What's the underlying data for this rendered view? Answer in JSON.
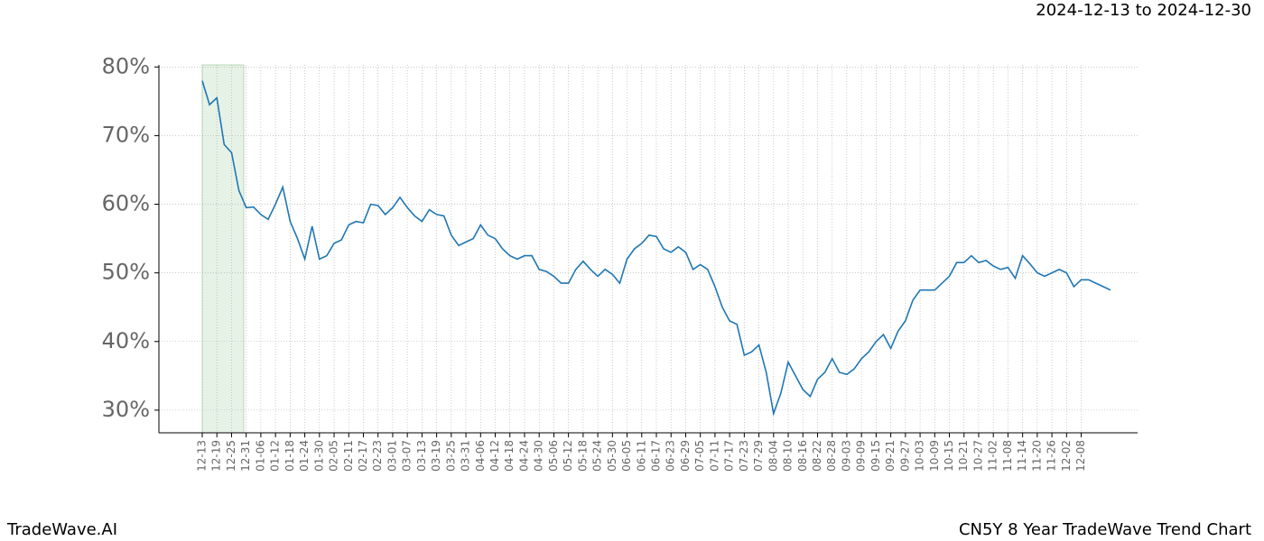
{
  "chart_data": {
    "type": "line",
    "title": "CN5Y 8 Year TradeWave Trend Chart",
    "subtitle": "2024-12-13 to 2024-12-30",
    "brand": "TradeWave.AI",
    "highlight": [
      "2024-12-13",
      "2024-12-30"
    ],
    "highlight_color": "#e6f2e6",
    "grid": true,
    "x": [
      "12-13",
      "12-16",
      "12-19",
      "12-22",
      "12-25",
      "12-28",
      "12-31",
      "01-03",
      "01-06",
      "01-09",
      "01-12",
      "01-15",
      "01-18",
      "01-21",
      "01-24",
      "01-27",
      "01-30",
      "02-02",
      "02-05",
      "02-08",
      "02-11",
      "02-14",
      "02-17",
      "02-20",
      "02-23",
      "02-26",
      "03-01",
      "03-04",
      "03-07",
      "03-10",
      "03-13",
      "03-16",
      "03-19",
      "03-22",
      "03-25",
      "03-28",
      "03-31",
      "04-03",
      "04-06",
      "04-09",
      "04-12",
      "04-15",
      "04-18",
      "04-21",
      "04-24",
      "04-27",
      "04-30",
      "05-03",
      "05-06",
      "05-09",
      "05-12",
      "05-15",
      "05-18",
      "05-21",
      "05-24",
      "05-27",
      "05-30",
      "06-02",
      "06-05",
      "06-08",
      "06-11",
      "06-14",
      "06-17",
      "06-20",
      "06-23",
      "06-26",
      "06-29",
      "07-02",
      "07-05",
      "07-08",
      "07-11",
      "07-14",
      "07-17",
      "07-20",
      "07-23",
      "07-26",
      "07-29",
      "08-01",
      "08-04",
      "08-07",
      "08-10",
      "08-13",
      "08-16",
      "08-19",
      "08-22",
      "08-25",
      "08-28",
      "08-31",
      "09-03",
      "09-06",
      "09-09",
      "09-12",
      "09-15",
      "09-18",
      "09-21",
      "09-24",
      "09-27",
      "09-30",
      "10-03",
      "10-06",
      "10-09",
      "10-12",
      "10-15",
      "10-18",
      "10-21",
      "10-24",
      "10-27",
      "10-30",
      "11-02",
      "11-05",
      "11-08",
      "11-11",
      "11-14",
      "11-17",
      "11-20",
      "11-23",
      "11-26",
      "11-29",
      "12-02",
      "12-05",
      "12-08",
      "12-11",
      "12-14",
      "12-17",
      "12-20"
    ],
    "series": [
      {
        "name": "CN5Y",
        "color": "#1f77b4",
        "values": [
          78,
          74.5,
          75.5,
          68.7,
          67.5,
          62,
          59.5,
          59.6,
          58.5,
          57.8,
          60,
          62.5,
          57.5,
          55,
          52,
          56.8,
          52,
          52.5,
          54.3,
          54.8,
          57,
          57.5,
          57.3,
          60,
          59.8,
          58.5,
          59.5,
          61,
          59.5,
          58.3,
          57.5,
          59.2,
          58.5,
          58.3,
          55.5,
          54,
          54.5,
          55,
          57,
          55.5,
          55,
          53.5,
          52.5,
          52,
          52.5,
          52.5,
          50.5,
          50.2,
          49.5,
          48.5,
          48.5,
          50.5,
          51.7,
          50.5,
          49.5,
          50.5,
          49.8,
          48.5,
          52,
          53.5,
          54.3,
          55.5,
          55.3,
          53.5,
          53,
          53.8,
          53,
          50.5,
          51.2,
          50.5,
          48,
          45,
          43,
          42.5,
          38,
          38.5,
          39.5,
          35.5,
          29.5,
          32.5,
          37,
          35,
          33,
          32,
          34.5,
          35.5,
          37.5,
          35.5,
          35.2,
          36,
          37.5,
          38.5,
          40,
          41,
          39,
          41.5,
          43,
          46,
          47.5,
          47.5,
          47.5,
          48.5,
          49.5,
          51.5,
          51.5,
          52.5,
          51.5,
          51.8,
          51,
          50.5,
          50.8,
          49.2,
          52.5,
          51.3,
          50,
          49.5,
          50,
          50.5,
          50,
          48,
          49,
          49,
          48.5,
          48,
          47.5
        ]
      }
    ],
    "xticks": [
      "12-13",
      "12-19",
      "12-25",
      "12-31",
      "01-06",
      "01-12",
      "01-18",
      "01-24",
      "01-30",
      "02-05",
      "02-11",
      "02-17",
      "02-23",
      "03-01",
      "03-07",
      "03-13",
      "03-19",
      "03-25",
      "03-31",
      "04-06",
      "04-12",
      "04-18",
      "04-24",
      "04-30",
      "05-06",
      "05-12",
      "05-18",
      "05-24",
      "05-30",
      "06-05",
      "06-11",
      "06-17",
      "06-23",
      "06-29",
      "07-05",
      "07-11",
      "07-17",
      "07-23",
      "07-29",
      "08-04",
      "08-10",
      "08-16",
      "08-22",
      "08-28",
      "09-03",
      "09-09",
      "09-15",
      "09-21",
      "09-27",
      "10-03",
      "10-09",
      "10-15",
      "10-21",
      "10-27",
      "11-02",
      "11-08",
      "11-14",
      "11-20",
      "11-26",
      "12-02",
      "12-08"
    ],
    "ylim": [
      26.7,
      80.3
    ],
    "yticks": [
      {
        "value": 30,
        "label": "30%"
      },
      {
        "value": 40,
        "label": "40%"
      },
      {
        "value": 50,
        "label": "50%"
      },
      {
        "value": 60,
        "label": "60%"
      },
      {
        "value": 70,
        "label": "70%"
      },
      {
        "value": 80,
        "label": "80%"
      }
    ]
  }
}
